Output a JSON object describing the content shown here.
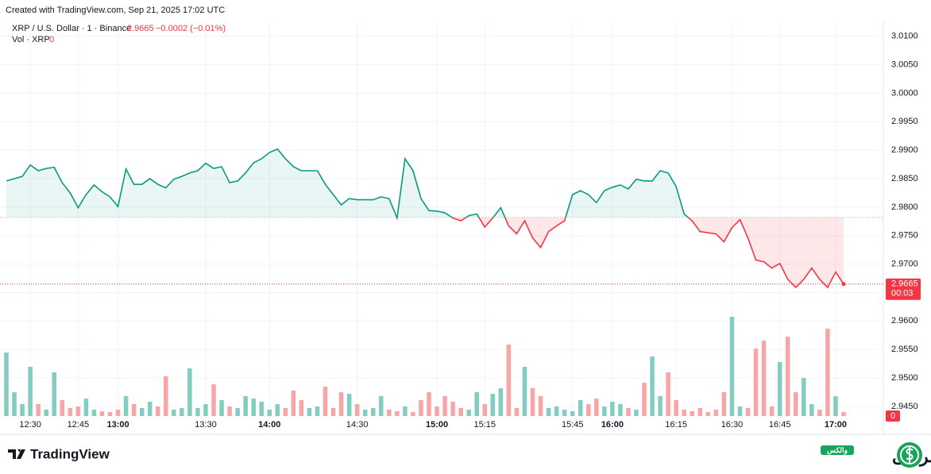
{
  "header": {
    "created": "Created with TradingView.com, Sep 21, 2025 17:02 UTC",
    "symbol": "XRP / U.S. Dollar · 1 · Binance",
    "last": "2.9665",
    "change": "−0.0002 (−0.01%)",
    "volume_label": "Vol · XRP",
    "volume_value": "0"
  },
  "footer": {
    "brand": "TradingView",
    "partner": "صرافی",
    "partner_tag": "والکس"
  },
  "chart_data": {
    "type": "baseline",
    "categories": [
      null,
      null,
      null,
      "12:30",
      null,
      null,
      null,
      null,
      null,
      "12:45",
      null,
      null,
      null,
      null,
      "13:00",
      null,
      null,
      null,
      null,
      null,
      null,
      null,
      null,
      null,
      null,
      "13:30",
      null,
      null,
      null,
      null,
      null,
      null,
      null,
      "14:00",
      null,
      null,
      null,
      null,
      null,
      null,
      null,
      null,
      null,
      null,
      "14:30",
      null,
      null,
      null,
      null,
      null,
      null,
      null,
      null,
      null,
      "15:00",
      null,
      null,
      null,
      null,
      null,
      "15:15",
      null,
      null,
      null,
      null,
      null,
      null,
      null,
      null,
      null,
      null,
      "15:45",
      null,
      null,
      null,
      null,
      "16:00",
      null,
      null,
      null,
      null,
      null,
      null,
      null,
      "16:15",
      null,
      null,
      null,
      null,
      null,
      null,
      "16:30",
      null,
      null,
      null,
      null,
      null,
      "16:45",
      null,
      null,
      null,
      null,
      null,
      null,
      "17:00",
      null
    ],
    "values": [
      2.9846,
      2.985,
      2.9854,
      2.9874,
      2.9864,
      2.9868,
      2.987,
      2.9843,
      2.9825,
      2.9799,
      2.9822,
      2.9839,
      2.9827,
      2.9818,
      2.9801,
      2.9867,
      2.984,
      2.984,
      2.985,
      2.984,
      2.9834,
      2.9849,
      2.9854,
      2.986,
      2.9864,
      2.9877,
      2.9868,
      2.9871,
      2.9843,
      2.9846,
      2.986,
      2.9878,
      2.9885,
      2.9896,
      2.9902,
      2.9885,
      2.9871,
      2.9864,
      2.9864,
      2.9864,
      2.984,
      2.9822,
      2.9804,
      2.9815,
      2.9813,
      2.9813,
      2.9813,
      2.9818,
      2.9815,
      2.9781,
      2.9885,
      2.9864,
      2.9815,
      2.9794,
      2.9793,
      2.979,
      2.9781,
      2.9776,
      2.9785,
      2.9788,
      2.9765,
      2.9781,
      2.9799,
      2.9767,
      2.9753,
      2.9776,
      2.9746,
      2.9729,
      2.9757,
      2.9767,
      2.9776,
      2.9822,
      2.9829,
      2.9822,
      2.9808,
      2.9829,
      2.9835,
      2.9839,
      2.9832,
      2.9849,
      2.9846,
      2.9846,
      2.9864,
      2.986,
      2.9836,
      2.9788,
      2.9776,
      2.9757,
      2.9755,
      2.9753,
      2.9739,
      2.9764,
      2.9778,
      2.9746,
      2.9707,
      2.9704,
      2.9693,
      2.9701,
      2.9673,
      2.9659,
      2.9673,
      2.9693,
      2.9673,
      2.9659,
      2.9686,
      2.9665
    ],
    "baseline": 2.9782,
    "up_color": "#089981",
    "down_color": "#f23645",
    "ylim": [
      2.9401,
      3.0122
    ],
    "yticks": [
      {
        "value": 2.945,
        "label": "2.9450"
      },
      {
        "value": 2.95,
        "label": "2.9500"
      },
      {
        "value": 2.955,
        "label": "2.9550"
      },
      {
        "value": 2.96,
        "label": "2.9600"
      },
      {
        "value": 2.965,
        "label": "2.9650"
      },
      {
        "value": 2.97,
        "label": "2.9700"
      },
      {
        "value": 2.975,
        "label": "2.9750"
      },
      {
        "value": 2.98,
        "label": "2.9800"
      },
      {
        "value": 2.985,
        "label": "2.9850"
      },
      {
        "value": 2.99,
        "label": "2.9900"
      },
      {
        "value": 2.995,
        "label": "2.9950"
      },
      {
        "value": 3.0,
        "label": "3.0000"
      },
      {
        "value": 3.005,
        "label": "3.0050"
      },
      {
        "value": 3.01,
        "label": "3.0100"
      }
    ],
    "last_price": {
      "value": 2.9665,
      "label": "2.9665"
    },
    "countdown": "00:03",
    "grid": true,
    "volume": {
      "values": [
        80,
        30,
        15,
        62,
        15,
        8,
        55,
        20,
        10,
        12,
        22,
        8,
        6,
        5,
        8,
        25,
        15,
        10,
        18,
        12,
        50,
        8,
        10,
        60,
        10,
        15,
        40,
        20,
        12,
        10,
        25,
        22,
        18,
        8,
        15,
        10,
        32,
        20,
        10,
        12,
        37,
        10,
        30,
        28,
        15,
        8,
        10,
        25,
        8,
        6,
        12,
        5,
        20,
        30,
        12,
        25,
        18,
        10,
        8,
        30,
        15,
        28,
        35,
        90,
        10,
        62,
        35,
        25,
        10,
        12,
        8,
        6,
        20,
        15,
        22,
        12,
        18,
        15,
        10,
        8,
        42,
        75,
        25,
        55,
        20,
        8,
        6,
        10,
        5,
        8,
        30,
        125,
        12,
        10,
        85,
        95,
        12,
        68,
        100,
        30,
        48,
        15,
        8,
        110,
        25,
        5
      ],
      "up_color": "#82cdbf",
      "down_color": "#f7a5a7",
      "ylim": [
        0,
        130
      ],
      "yticks": [
        0
      ]
    }
  }
}
